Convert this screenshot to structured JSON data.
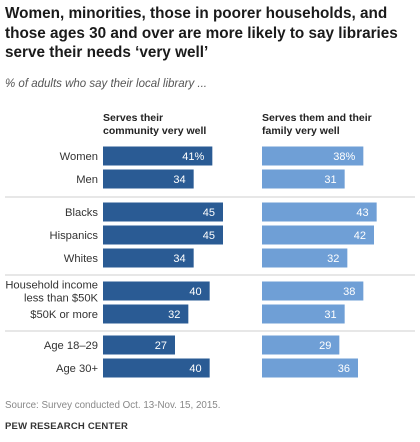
{
  "title": "Women, minorities, those in poorer households, and those ages 30 and over are more likely to say libraries serve their needs ‘very well’",
  "subtitle": "% of adults who say their local library ...",
  "source": "Source: Survey conducted Oct. 13-Nov. 15, 2015.",
  "brand": "PEW RESEARCH CENTER",
  "colors": {
    "series1": "#2a5b94",
    "series2": "#6f9fd6",
    "separator": "#cfcfcf"
  },
  "chart_data": {
    "type": "bar",
    "orientation": "horizontal",
    "title": "Women, minorities, those in poorer households, and those ages 30 and over are more likely to say libraries serve their needs ‘very well’",
    "subtitle": "% of adults who say their local library ...",
    "categories": [
      "Women",
      "Men",
      "Blacks",
      "Hispanics",
      "Whites",
      "Household income less than $50K",
      "$50K or more",
      "Age 18–29",
      "Age 30+"
    ],
    "category_lines": [
      [
        "Women"
      ],
      [
        "Men"
      ],
      [
        "Blacks"
      ],
      [
        "Hispanics"
      ],
      [
        "Whites"
      ],
      [
        "Household income",
        "less than $50K"
      ],
      [
        "$50K or more"
      ],
      [
        "Age 18–29"
      ],
      [
        "Age 30+"
      ]
    ],
    "groups": [
      [
        0,
        1
      ],
      [
        2,
        3,
        4
      ],
      [
        5,
        6
      ],
      [
        7,
        8
      ]
    ],
    "series": [
      {
        "name": "Serves their community very well",
        "header_lines": [
          "Serves their",
          "community very well"
        ],
        "values": [
          41,
          34,
          45,
          45,
          34,
          40,
          32,
          27,
          40
        ],
        "labels": [
          "41%",
          "34",
          "45",
          "45",
          "34",
          "40",
          "32",
          "27",
          "40"
        ]
      },
      {
        "name": "Serves them and their family very well",
        "header_lines": [
          "Serves them and their",
          "family very well"
        ],
        "values": [
          38,
          31,
          43,
          42,
          32,
          38,
          31,
          29,
          36
        ],
        "labels": [
          "38%",
          "31",
          "43",
          "42",
          "32",
          "38",
          "31",
          "29",
          "36"
        ]
      }
    ],
    "value_unit": "%",
    "grid": false,
    "legend": "none (column headers)"
  }
}
